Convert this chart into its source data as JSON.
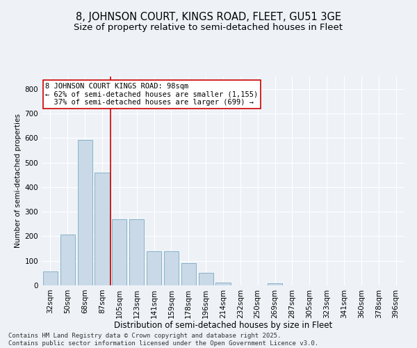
{
  "title1": "8, JOHNSON COURT, KINGS ROAD, FLEET, GU51 3GE",
  "title2": "Size of property relative to semi-detached houses in Fleet",
  "xlabel": "Distribution of semi-detached houses by size in Fleet",
  "ylabel": "Number of semi-detached properties",
  "categories": [
    "32sqm",
    "50sqm",
    "68sqm",
    "87sqm",
    "105sqm",
    "123sqm",
    "141sqm",
    "159sqm",
    "178sqm",
    "196sqm",
    "214sqm",
    "232sqm",
    "250sqm",
    "269sqm",
    "287sqm",
    "305sqm",
    "323sqm",
    "341sqm",
    "360sqm",
    "378sqm",
    "396sqm"
  ],
  "values": [
    57,
    208,
    592,
    460,
    270,
    268,
    140,
    140,
    90,
    50,
    10,
    0,
    0,
    8,
    0,
    0,
    0,
    0,
    0,
    0,
    0
  ],
  "bar_color": "#c9d9e8",
  "bar_edge_color": "#7aaabf",
  "vline_color": "#cc0000",
  "vline_x": 3.5,
  "annotation_text": "8 JOHNSON COURT KINGS ROAD: 98sqm\n← 62% of semi-detached houses are smaller (1,155)\n  37% of semi-detached houses are larger (699) →",
  "annotation_box_edge_color": "#cc0000",
  "ylim": [
    0,
    850
  ],
  "yticks": [
    0,
    100,
    200,
    300,
    400,
    500,
    600,
    700,
    800
  ],
  "footer_text": "Contains HM Land Registry data © Crown copyright and database right 2025.\nContains public sector information licensed under the Open Government Licence v3.0.",
  "bg_color": "#eef2f7",
  "title1_fontsize": 10.5,
  "title2_fontsize": 9.5,
  "xlabel_fontsize": 8.5,
  "ylabel_fontsize": 7.5,
  "tick_fontsize": 7.5,
  "annotation_fontsize": 7.5,
  "footer_fontsize": 6.5
}
